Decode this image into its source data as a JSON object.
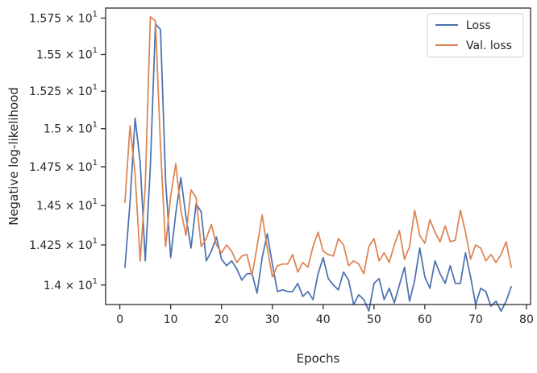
{
  "chart_data": {
    "type": "line",
    "title": "",
    "xlabel": "Epochs",
    "ylabel": "Negative log-likelihood",
    "xlim": [
      -2.8,
      80.8
    ],
    "ylim": [
      13.88,
      15.82
    ],
    "y_scale": "log",
    "grid": false,
    "legend_position": "top-right",
    "x_ticks": [
      0,
      10,
      20,
      30,
      40,
      50,
      60,
      70,
      80
    ],
    "y_ticks": [
      {
        "value": 14.0,
        "mantissa": "1.4",
        "base": "10",
        "exponent": "1"
      },
      {
        "value": 14.25,
        "mantissa": "1.425",
        "base": "10",
        "exponent": "1"
      },
      {
        "value": 14.5,
        "mantissa": "1.45",
        "base": "10",
        "exponent": "1"
      },
      {
        "value": 14.75,
        "mantissa": "1.475",
        "base": "10",
        "exponent": "1"
      },
      {
        "value": 15.0,
        "mantissa": "1.5",
        "base": "10",
        "exponent": "1"
      },
      {
        "value": 15.25,
        "mantissa": "1.525",
        "base": "10",
        "exponent": "1"
      },
      {
        "value": 15.5,
        "mantissa": "1.55",
        "base": "10",
        "exponent": "1"
      },
      {
        "value": 15.75,
        "mantissa": "1.575",
        "base": "10",
        "exponent": "1"
      }
    ],
    "x": [
      1,
      2,
      3,
      4,
      5,
      6,
      7,
      8,
      9,
      10,
      11,
      12,
      13,
      14,
      15,
      16,
      17,
      18,
      19,
      20,
      21,
      22,
      23,
      24,
      25,
      26,
      27,
      28,
      29,
      30,
      31,
      32,
      33,
      34,
      35,
      36,
      37,
      38,
      39,
      40,
      41,
      42,
      43,
      44,
      45,
      46,
      47,
      48,
      49,
      50,
      51,
      52,
      53,
      54,
      55,
      56,
      57,
      58,
      59,
      60,
      61,
      62,
      63,
      64,
      65,
      66,
      67,
      68,
      69,
      70,
      71,
      72,
      73,
      74,
      75,
      76,
      77
    ],
    "series": [
      {
        "name": "Loss",
        "color": "#4c72b0",
        "values": [
          14.11,
          14.52,
          15.07,
          14.78,
          14.15,
          14.75,
          15.71,
          15.67,
          14.66,
          14.17,
          14.45,
          14.68,
          14.43,
          14.23,
          14.51,
          14.46,
          14.15,
          14.21,
          14.3,
          14.16,
          14.12,
          14.15,
          14.1,
          14.03,
          14.07,
          14.07,
          13.95,
          14.17,
          14.32,
          14.13,
          13.96,
          13.97,
          13.96,
          13.96,
          14.01,
          13.93,
          13.96,
          13.91,
          14.07,
          14.17,
          14.04,
          14.0,
          13.97,
          14.08,
          14.03,
          13.88,
          13.94,
          13.91,
          13.84,
          14.01,
          14.04,
          13.91,
          13.98,
          13.89,
          14.0,
          14.11,
          13.9,
          14.03,
          14.23,
          14.05,
          13.98,
          14.15,
          14.07,
          14.01,
          14.12,
          14.01,
          14.01,
          14.2,
          14.05,
          13.88,
          13.98,
          13.96,
          13.87,
          13.9,
          13.84,
          13.9,
          13.99
        ]
      },
      {
        "name": "Val. loss",
        "color": "#dd8452",
        "values": [
          14.52,
          15.02,
          14.7,
          14.15,
          14.63,
          15.76,
          15.73,
          14.88,
          14.24,
          14.56,
          14.77,
          14.47,
          14.31,
          14.6,
          14.55,
          14.24,
          14.29,
          14.38,
          14.25,
          14.2,
          14.25,
          14.21,
          14.14,
          14.18,
          14.19,
          14.06,
          14.24,
          14.44,
          14.23,
          14.05,
          14.12,
          14.13,
          14.13,
          14.19,
          14.08,
          14.14,
          14.11,
          14.24,
          14.33,
          14.21,
          14.19,
          14.18,
          14.29,
          14.25,
          14.12,
          14.15,
          14.13,
          14.07,
          14.24,
          14.29,
          14.15,
          14.2,
          14.14,
          14.25,
          14.34,
          14.16,
          14.24,
          14.47,
          14.31,
          14.26,
          14.41,
          14.33,
          14.27,
          14.37,
          14.27,
          14.28,
          14.47,
          14.33,
          14.16,
          14.25,
          14.23,
          14.15,
          14.19,
          14.14,
          14.19,
          14.27,
          14.11
        ]
      }
    ]
  }
}
